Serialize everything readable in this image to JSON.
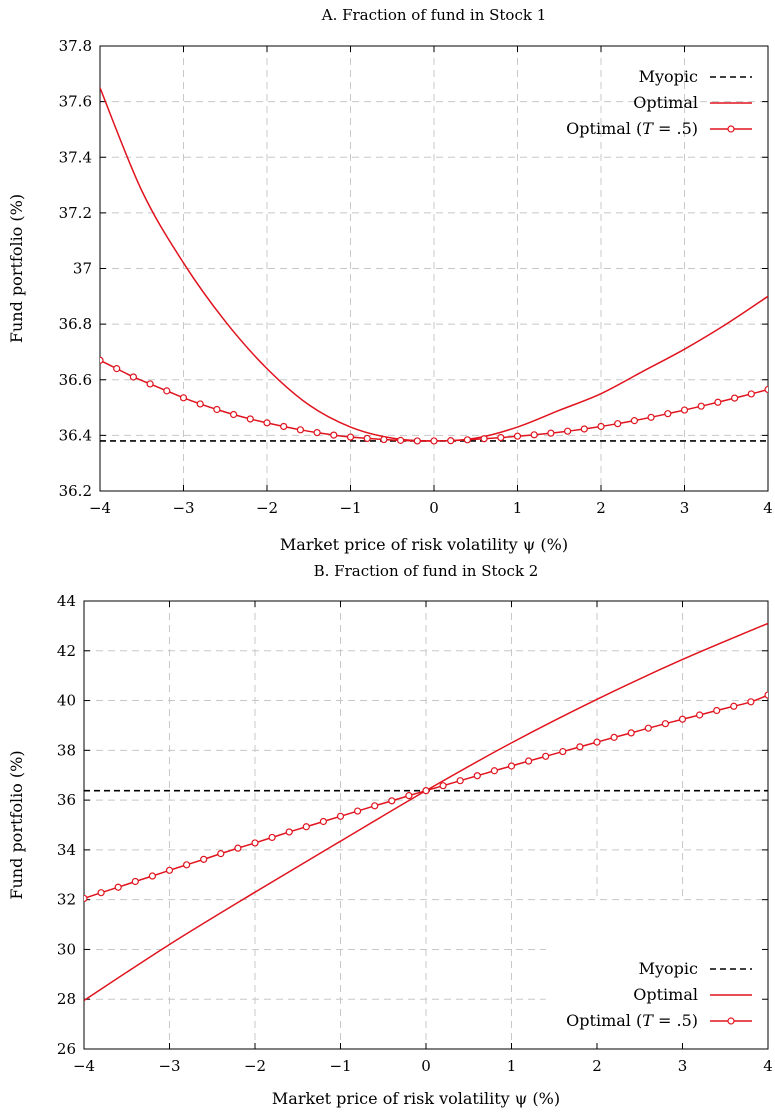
{
  "chart_data": [
    {
      "type": "line",
      "title": "A. Fraction of fund in Stock 1",
      "xlabel": "Market price of risk volatility ψ (%)",
      "ylabel": "Fund portfolio (%)",
      "xlim": [
        -4,
        4
      ],
      "ylim": [
        36.2,
        37.8
      ],
      "xticks": [
        -4,
        -3,
        -2,
        -1,
        0,
        1,
        2,
        3,
        4
      ],
      "xtick_labels": [
        "−4",
        "−3",
        "−2",
        "−1",
        "0",
        "1",
        "2",
        "3",
        "4"
      ],
      "yticks": [
        36.2,
        36.4,
        36.6,
        36.8,
        37.0,
        37.2,
        37.4,
        37.6,
        37.8
      ],
      "ytick_labels": [
        "36.2",
        "36.4",
        "36.6",
        "36.8",
        "37",
        "37.2",
        "37.4",
        "37.6",
        "37.8"
      ],
      "grid": true,
      "legend_position": "top-right",
      "series": [
        {
          "name": "Myopic",
          "style": "dashed",
          "color": "#000000",
          "x": [
            -4,
            4
          ],
          "y": [
            36.38,
            36.38
          ]
        },
        {
          "name": "Optimal",
          "style": "solid",
          "color": "#e0141e",
          "x": [
            -4,
            -3.5,
            -3,
            -2.5,
            -2,
            -1.5,
            -1,
            -0.5,
            0,
            0.5,
            1,
            1.5,
            2,
            2.5,
            3,
            3.5,
            4
          ],
          "y": [
            37.65,
            37.28,
            37.02,
            36.81,
            36.64,
            36.51,
            36.43,
            36.39,
            36.38,
            36.39,
            36.43,
            36.49,
            36.55,
            36.63,
            36.71,
            36.8,
            36.9
          ]
        },
        {
          "name": "Optimal (T = .5)",
          "name_prefix": "Optimal (",
          "name_var": "T",
          "name_suffix": " = .5)",
          "style": "solid-markers",
          "color": "#e0141e",
          "x": [
            -4,
            -3.8,
            -3.6,
            -3.4,
            -3.2,
            -3,
            -2.8,
            -2.6,
            -2.4,
            -2.2,
            -2,
            -1.8,
            -1.6,
            -1.4,
            -1.2,
            -1,
            -0.8,
            -0.6,
            -0.4,
            -0.2,
            0,
            0.2,
            0.4,
            0.6,
            0.8,
            1,
            1.2,
            1.4,
            1.6,
            1.8,
            2,
            2.2,
            2.4,
            2.6,
            2.8,
            3,
            3.2,
            3.4,
            3.6,
            3.8,
            4
          ],
          "y": [
            36.67,
            36.64,
            36.61,
            36.585,
            36.56,
            36.535,
            36.513,
            36.493,
            36.475,
            36.459,
            36.445,
            36.432,
            36.42,
            36.41,
            36.401,
            36.394,
            36.389,
            36.385,
            36.382,
            36.38,
            36.38,
            36.381,
            36.384,
            36.388,
            36.392,
            36.397,
            36.402,
            36.408,
            36.415,
            36.423,
            36.432,
            36.442,
            36.453,
            36.465,
            36.478,
            36.491,
            36.505,
            36.519,
            36.534,
            36.549,
            36.565
          ]
        }
      ]
    },
    {
      "type": "line",
      "title": "B. Fraction of fund in Stock 2",
      "xlabel": "Market price of risk volatility ψ (%)",
      "ylabel": "Fund portfolio (%)",
      "xlim": [
        -4,
        4
      ],
      "ylim": [
        26,
        44
      ],
      "xticks": [
        -4,
        -3,
        -2,
        -1,
        0,
        1,
        2,
        3,
        4
      ],
      "xtick_labels": [
        "−4",
        "−3",
        "−2",
        "−1",
        "0",
        "1",
        "2",
        "3",
        "4"
      ],
      "yticks": [
        26,
        28,
        30,
        32,
        34,
        36,
        38,
        40,
        42,
        44
      ],
      "ytick_labels": [
        "26",
        "28",
        "30",
        "32",
        "34",
        "36",
        "38",
        "40",
        "42",
        "44"
      ],
      "grid": true,
      "legend_position": "bottom-right",
      "series": [
        {
          "name": "Myopic",
          "style": "dashed",
          "color": "#000000",
          "x": [
            -4,
            4
          ],
          "y": [
            36.38,
            36.38
          ]
        },
        {
          "name": "Optimal",
          "style": "solid",
          "color": "#e0141e",
          "x": [
            -4,
            -3,
            -2,
            -1,
            0,
            1,
            2,
            3,
            4
          ],
          "y": [
            27.95,
            30.2,
            32.3,
            34.35,
            36.38,
            38.3,
            40.05,
            41.65,
            43.1
          ]
        },
        {
          "name": "Optimal (T = .5)",
          "name_prefix": "Optimal (",
          "name_var": "T",
          "name_suffix": " = .5)",
          "style": "solid-markers",
          "color": "#e0141e",
          "x": [
            -4,
            -3.8,
            -3.6,
            -3.4,
            -3.2,
            -3,
            -2.8,
            -2.6,
            -2.4,
            -2.2,
            -2,
            -1.8,
            -1.6,
            -1.4,
            -1.2,
            -1,
            -0.8,
            -0.6,
            -0.4,
            -0.2,
            0,
            0.2,
            0.4,
            0.6,
            0.8,
            1,
            1.2,
            1.4,
            1.6,
            1.8,
            2,
            2.2,
            2.4,
            2.6,
            2.8,
            3,
            3.2,
            3.4,
            3.6,
            3.8,
            4
          ],
          "y": [
            32.05,
            32.28,
            32.5,
            32.73,
            32.95,
            33.18,
            33.4,
            33.62,
            33.85,
            34.07,
            34.28,
            34.5,
            34.72,
            34.93,
            35.14,
            35.35,
            35.56,
            35.77,
            35.97,
            36.18,
            36.38,
            36.58,
            36.78,
            36.98,
            37.18,
            37.37,
            37.57,
            37.76,
            37.95,
            38.14,
            38.33,
            38.52,
            38.7,
            38.89,
            39.07,
            39.25,
            39.42,
            39.6,
            39.77,
            39.95,
            40.22
          ]
        }
      ]
    }
  ]
}
